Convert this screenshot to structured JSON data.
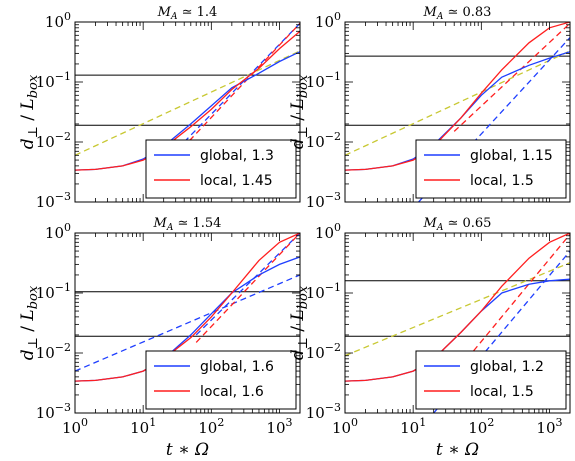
{
  "figure": {
    "ylabel": "d⊥ / Lbox",
    "xlabel": "t ∗ Ω"
  },
  "chart_data": [
    {
      "type": "line",
      "title": "M_A ≃ 1.4",
      "xlabel": "",
      "ylabel": "d⊥ / Lbox",
      "xscale": "log",
      "yscale": "log",
      "xlim": [
        1,
        2000
      ],
      "ylim": [
        0.001,
        1
      ],
      "x_ticks": [
        "10^0",
        "10^1",
        "10^2",
        "10^3"
      ],
      "y_ticks": [
        "10^-3",
        "10^-2",
        "10^-1",
        "10^0"
      ],
      "hlines": [
        0.13,
        0.019
      ],
      "legend_location": "lower-right",
      "series": [
        {
          "name": "global, 1.3",
          "color": "#1f3fff",
          "style": "solid",
          "x": [
            1,
            2,
            5,
            10,
            20,
            50,
            100,
            200,
            500,
            1000,
            2000
          ],
          "y": [
            0.0034,
            0.0035,
            0.004,
            0.0052,
            0.0085,
            0.02,
            0.04,
            0.08,
            0.14,
            0.22,
            0.32
          ]
        },
        {
          "name": "local, 1.45",
          "color": "#ff1f1f",
          "style": "solid",
          "x": [
            1,
            2,
            5,
            10,
            20,
            50,
            100,
            200,
            500,
            1000,
            2000
          ],
          "y": [
            0.0034,
            0.0035,
            0.004,
            0.005,
            0.008,
            0.018,
            0.035,
            0.075,
            0.17,
            0.36,
            0.7
          ]
        },
        {
          "name": "",
          "color": "#c8c832",
          "style": "dashed",
          "x": [
            1,
            2000
          ],
          "y": [
            0.006,
            0.33
          ]
        },
        {
          "name": "",
          "color": "#1f3fff",
          "style": "dashed",
          "x": [
            40,
            2000
          ],
          "y": [
            0.01,
            0.95
          ]
        },
        {
          "name": "",
          "color": "#ff1f1f",
          "style": "dashed",
          "x": [
            30,
            2000
          ],
          "y": [
            0.006,
            0.95
          ]
        }
      ]
    },
    {
      "type": "line",
      "title": "M_A ≃ 0.83",
      "xlabel": "",
      "ylabel": "",
      "xscale": "log",
      "yscale": "log",
      "xlim": [
        1,
        2000
      ],
      "ylim": [
        0.001,
        1
      ],
      "x_ticks": [
        "10^0",
        "10^1",
        "10^2",
        "10^3"
      ],
      "y_ticks": [
        "10^-3",
        "10^-2",
        "10^-1",
        "10^0"
      ],
      "hlines": [
        0.27,
        0.019
      ],
      "legend_location": "lower-right",
      "series": [
        {
          "name": "global, 1.15",
          "color": "#1f3fff",
          "style": "solid",
          "x": [
            1,
            2,
            5,
            10,
            20,
            50,
            100,
            200,
            500,
            1000,
            2000
          ],
          "y": [
            0.0034,
            0.0035,
            0.004,
            0.0052,
            0.009,
            0.025,
            0.06,
            0.12,
            0.19,
            0.25,
            0.32
          ]
        },
        {
          "name": "local, 1.5",
          "color": "#ff1f1f",
          "style": "solid",
          "x": [
            1,
            2,
            5,
            10,
            20,
            50,
            100,
            200,
            500,
            1000,
            2000
          ],
          "y": [
            0.0034,
            0.0035,
            0.004,
            0.005,
            0.0085,
            0.025,
            0.065,
            0.16,
            0.45,
            0.8,
            1.0
          ]
        },
        {
          "name": "",
          "color": "#c8c832",
          "style": "dashed",
          "x": [
            1,
            2000
          ],
          "y": [
            0.006,
            0.33
          ]
        },
        {
          "name": "",
          "color": "#1f3fff",
          "style": "dashed",
          "x": [
            12,
            2000
          ],
          "y": [
            0.001,
            0.55
          ]
        },
        {
          "name": "",
          "color": "#ff1f1f",
          "style": "dashed",
          "x": [
            40,
            2000
          ],
          "y": [
            0.015,
            0.95
          ]
        }
      ]
    },
    {
      "type": "line",
      "title": "M_A ≃ 1.54",
      "xlabel": "t ∗ Ω",
      "ylabel": "d⊥ / Lbox",
      "xscale": "log",
      "yscale": "log",
      "xlim": [
        1,
        2000
      ],
      "ylim": [
        0.001,
        1
      ],
      "x_ticks": [
        "10^0",
        "10^1",
        "10^2",
        "10^3"
      ],
      "y_ticks": [
        "10^-3",
        "10^-2",
        "10^-1",
        "10^0"
      ],
      "hlines": [
        0.105,
        0.019
      ],
      "legend_location": "lower-right",
      "series": [
        {
          "name": "global, 1.6",
          "color": "#1f3fff",
          "style": "solid",
          "x": [
            1,
            2,
            5,
            10,
            20,
            50,
            100,
            200,
            500,
            1000,
            2000
          ],
          "y": [
            0.0034,
            0.0035,
            0.004,
            0.005,
            0.008,
            0.02,
            0.045,
            0.1,
            0.2,
            0.3,
            0.4
          ]
        },
        {
          "name": "local, 1.6",
          "color": "#ff1f1f",
          "style": "solid",
          "x": [
            1,
            2,
            5,
            10,
            20,
            50,
            100,
            200,
            500,
            1000,
            2000
          ],
          "y": [
            0.0034,
            0.0035,
            0.004,
            0.005,
            0.008,
            0.018,
            0.04,
            0.1,
            0.35,
            0.7,
            1.0
          ]
        },
        {
          "name": "",
          "color": "#1f3fff",
          "style": "dashed",
          "x": [
            1,
            2000
          ],
          "y": [
            0.005,
            0.2
          ]
        },
        {
          "name": "",
          "color": "#1f3fff",
          "style": "dashed",
          "x": [
            60,
            2000
          ],
          "y": [
            0.02,
            1.0
          ]
        },
        {
          "name": "",
          "color": "#ff1f1f",
          "style": "dashed",
          "x": [
            60,
            2000
          ],
          "y": [
            0.015,
            1.0
          ]
        }
      ]
    },
    {
      "type": "line",
      "title": "M_A ≃ 0.65",
      "xlabel": "t ∗ Ω",
      "ylabel": "d⊥ / Lbox",
      "xscale": "log",
      "yscale": "log",
      "xlim": [
        1,
        2000
      ],
      "ylim": [
        0.001,
        1
      ],
      "x_ticks": [
        "10^0",
        "10^1",
        "10^2",
        "10^3"
      ],
      "y_ticks": [
        "10^-3",
        "10^-2",
        "10^-1",
        "10^0"
      ],
      "hlines": [
        0.16,
        0.019
      ],
      "legend_location": "lower-right",
      "series": [
        {
          "name": "global, 1.2",
          "color": "#1f3fff",
          "style": "solid",
          "x": [
            1,
            2,
            5,
            10,
            20,
            50,
            100,
            200,
            500,
            1000,
            2000
          ],
          "y": [
            0.0034,
            0.0035,
            0.004,
            0.005,
            0.008,
            0.022,
            0.05,
            0.1,
            0.14,
            0.16,
            0.17
          ]
        },
        {
          "name": "local, 1.5",
          "color": "#ff1f1f",
          "style": "solid",
          "x": [
            1,
            2,
            5,
            10,
            20,
            50,
            100,
            200,
            500,
            1000,
            2000
          ],
          "y": [
            0.0034,
            0.0035,
            0.004,
            0.005,
            0.008,
            0.022,
            0.05,
            0.13,
            0.38,
            0.7,
            1.0
          ]
        },
        {
          "name": "",
          "color": "#c8c832",
          "style": "dashed",
          "x": [
            1,
            2000
          ],
          "y": [
            0.009,
            0.32
          ]
        },
        {
          "name": "",
          "color": "#1f3fff",
          "style": "dashed",
          "x": [
            20,
            2000
          ],
          "y": [
            0.001,
            0.5
          ]
        },
        {
          "name": "",
          "color": "#ff1f1f",
          "style": "dashed",
          "x": [
            50,
            2000
          ],
          "y": [
            0.006,
            0.95
          ]
        }
      ]
    }
  ]
}
